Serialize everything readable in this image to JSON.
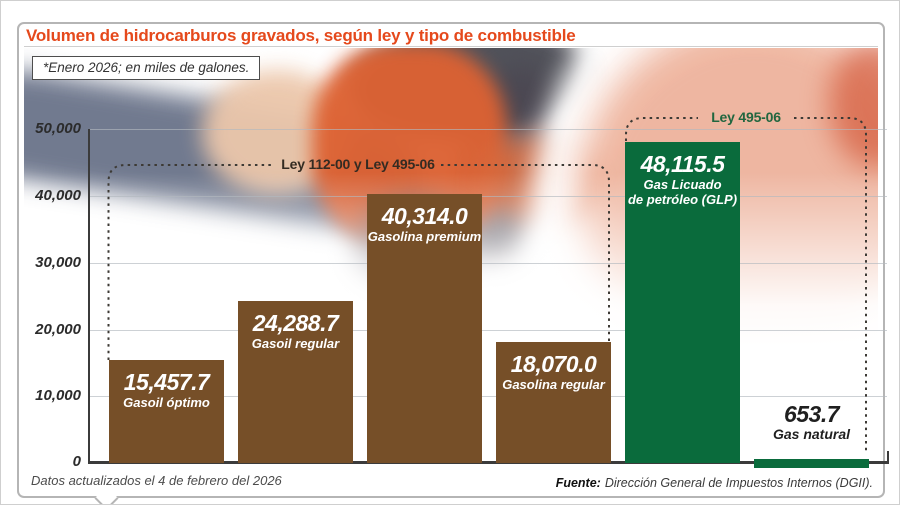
{
  "colors": {
    "title_accent": "#e5491c",
    "bar_fuel_brown": "#764f28",
    "bar_gas_green": "#0a6b3c",
    "bracket_dots": "#3d3a35",
    "annotation_1_text": "#342b22",
    "annotation_2_text": "#21663f"
  },
  "chart_data": {
    "type": "bar",
    "title": "Volumen de hidrocarburos gravados, según ley y tipo de combustible",
    "subtitle": "*Enero 2026; en miles de galones.",
    "unit": "miles de galones",
    "ylim": [
      0,
      50000
    ],
    "ytick_labels": [
      "50,000",
      "40,000",
      "30,000",
      "20,000",
      "10,000",
      "0"
    ],
    "grid": true,
    "categories": [
      "Gasoil óptimo",
      "Gasoil regular",
      "Gasolina premium",
      "Gasolina regular",
      "Gas Licuado de petróleo (GLP)",
      "Gas natural"
    ],
    "values": [
      15457.7,
      24288.7,
      40314.0,
      18070.0,
      48115.5,
      653.7
    ],
    "value_labels": [
      "15,457.7",
      "24,288.7",
      "40,314.0",
      "18,070.0",
      "48,115.5",
      "653.7"
    ],
    "category_display": [
      [
        "Gasoil óptimo"
      ],
      [
        "Gasoil regular"
      ],
      [
        "Gasolina premium"
      ],
      [
        "Gasolina regular"
      ],
      [
        "Gas Licuado",
        "de petróleo (GLP)"
      ],
      [
        "Gas natural"
      ]
    ],
    "annotations": [
      {
        "label": "Ley 112-00 y Ley 495-06",
        "applies_to": [
          "Gasoil óptimo",
          "Gasoil regular",
          "Gasolina premium",
          "Gasolina regular"
        ]
      },
      {
        "label": "Ley 495-06",
        "applies_to": [
          "Gas Licuado de petróleo (GLP)",
          "Gas natural"
        ]
      }
    ]
  },
  "footer": {
    "updated": "Datos actualizados el 4 de febrero del 2026",
    "source_label": "Fuente:",
    "source_text": "Dirección General de Impuestos Internos (DGII)."
  }
}
